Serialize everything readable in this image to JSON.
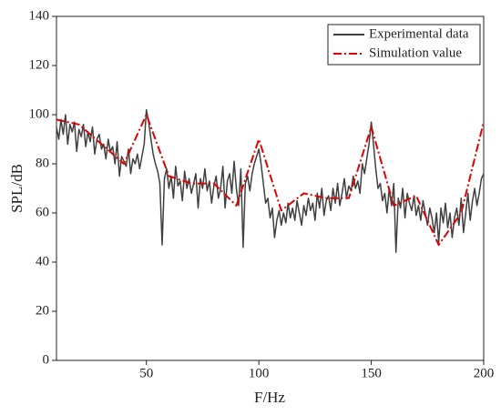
{
  "chart_data": {
    "type": "line",
    "xlabel": "F/Hz",
    "ylabel": "SPL/dB",
    "xlim": [
      10,
      200
    ],
    "xticks": [
      50,
      100,
      150,
      200
    ],
    "ylim": [
      0,
      140
    ],
    "yticks": [
      0,
      20,
      40,
      60,
      80,
      100,
      120,
      140
    ],
    "legend": "upper right",
    "series": [
      {
        "name": "Experimental data",
        "color": "#404040",
        "style": "solid",
        "x": [
          10,
          11,
          12,
          13,
          14,
          15,
          16,
          17,
          18,
          19,
          20,
          21,
          22,
          23,
          24,
          25,
          26,
          27,
          28,
          29,
          30,
          31,
          32,
          33,
          34,
          35,
          36,
          37,
          38,
          39,
          40,
          41,
          42,
          43,
          44,
          45,
          46,
          47,
          48,
          49,
          50,
          51,
          52,
          53,
          54,
          55,
          56,
          57,
          58,
          59,
          60,
          61,
          62,
          63,
          64,
          65,
          66,
          67,
          68,
          69,
          70,
          71,
          72,
          73,
          74,
          75,
          76,
          77,
          78,
          79,
          80,
          81,
          82,
          83,
          84,
          85,
          86,
          87,
          88,
          89,
          90,
          91,
          92,
          93,
          94,
          95,
          96,
          97,
          98,
          99,
          100,
          101,
          102,
          103,
          104,
          105,
          106,
          107,
          108,
          109,
          110,
          111,
          112,
          113,
          114,
          115,
          116,
          117,
          118,
          119,
          120,
          121,
          122,
          123,
          124,
          125,
          126,
          127,
          128,
          129,
          130,
          131,
          132,
          133,
          134,
          135,
          136,
          137,
          138,
          139,
          140,
          141,
          142,
          143,
          144,
          145,
          146,
          147,
          148,
          149,
          150,
          151,
          152,
          153,
          154,
          155,
          156,
          157,
          158,
          159,
          160,
          161,
          162,
          163,
          164,
          165,
          166,
          167,
          168,
          169,
          170,
          171,
          172,
          173,
          174,
          175,
          176,
          177,
          178,
          179,
          180,
          181,
          182,
          183,
          184,
          185,
          186,
          187,
          188,
          189,
          190,
          191,
          192,
          193,
          194,
          195,
          196,
          197,
          198,
          199,
          200
        ],
        "values": [
          95,
          90,
          98,
          92,
          100,
          88,
          96,
          93,
          97,
          85,
          94,
          91,
          96,
          87,
          93,
          89,
          95,
          84,
          90,
          92,
          86,
          88,
          82,
          90,
          85,
          87,
          80,
          89,
          75,
          83,
          81,
          79,
          86,
          76,
          82,
          80,
          84,
          78,
          83,
          88,
          102,
          97,
          90,
          84,
          80,
          77,
          72,
          47,
          74,
          78,
          70,
          75,
          66,
          79,
          71,
          73,
          65,
          77,
          70,
          74,
          68,
          72,
          76,
          62,
          74,
          70,
          78,
          69,
          73,
          64,
          71,
          75,
          66,
          70,
          79,
          62,
          73,
          76,
          68,
          81,
          70,
          63,
          78,
          46,
          72,
          75,
          69,
          76,
          80,
          83,
          86,
          80,
          72,
          64,
          66,
          58,
          62,
          50,
          57,
          61,
          55,
          60,
          56,
          64,
          58,
          62,
          57,
          65,
          60,
          55,
          63,
          59,
          66,
          61,
          64,
          57,
          68,
          62,
          70,
          59,
          65,
          67,
          61,
          70,
          64,
          72,
          63,
          68,
          74,
          66,
          71,
          69,
          75,
          70,
          73,
          68,
          80,
          76,
          82,
          88,
          97,
          88,
          78,
          70,
          72,
          65,
          68,
          60,
          70,
          63,
          72,
          44,
          66,
          62,
          70,
          58,
          68,
          64,
          61,
          67,
          59,
          63,
          57,
          65,
          60,
          55,
          62,
          58,
          52,
          60,
          48,
          62,
          56,
          64,
          54,
          60,
          50,
          58,
          62,
          55,
          66,
          52,
          60,
          68,
          57,
          65,
          70,
          63,
          68,
          74,
          76
        ]
      },
      {
        "name": "Simulation value",
        "color": "#e00000",
        "style": "dashdot",
        "x": [
          10,
          20,
          30,
          40,
          50,
          60,
          70,
          80,
          90,
          100,
          110,
          120,
          130,
          140,
          150,
          160,
          170,
          180,
          190,
          200
        ],
        "values": [
          98,
          96,
          88,
          80,
          100,
          75,
          72,
          72,
          63,
          90,
          61,
          68,
          66,
          66,
          95,
          63,
          67,
          47,
          60,
          97
        ]
      }
    ]
  }
}
